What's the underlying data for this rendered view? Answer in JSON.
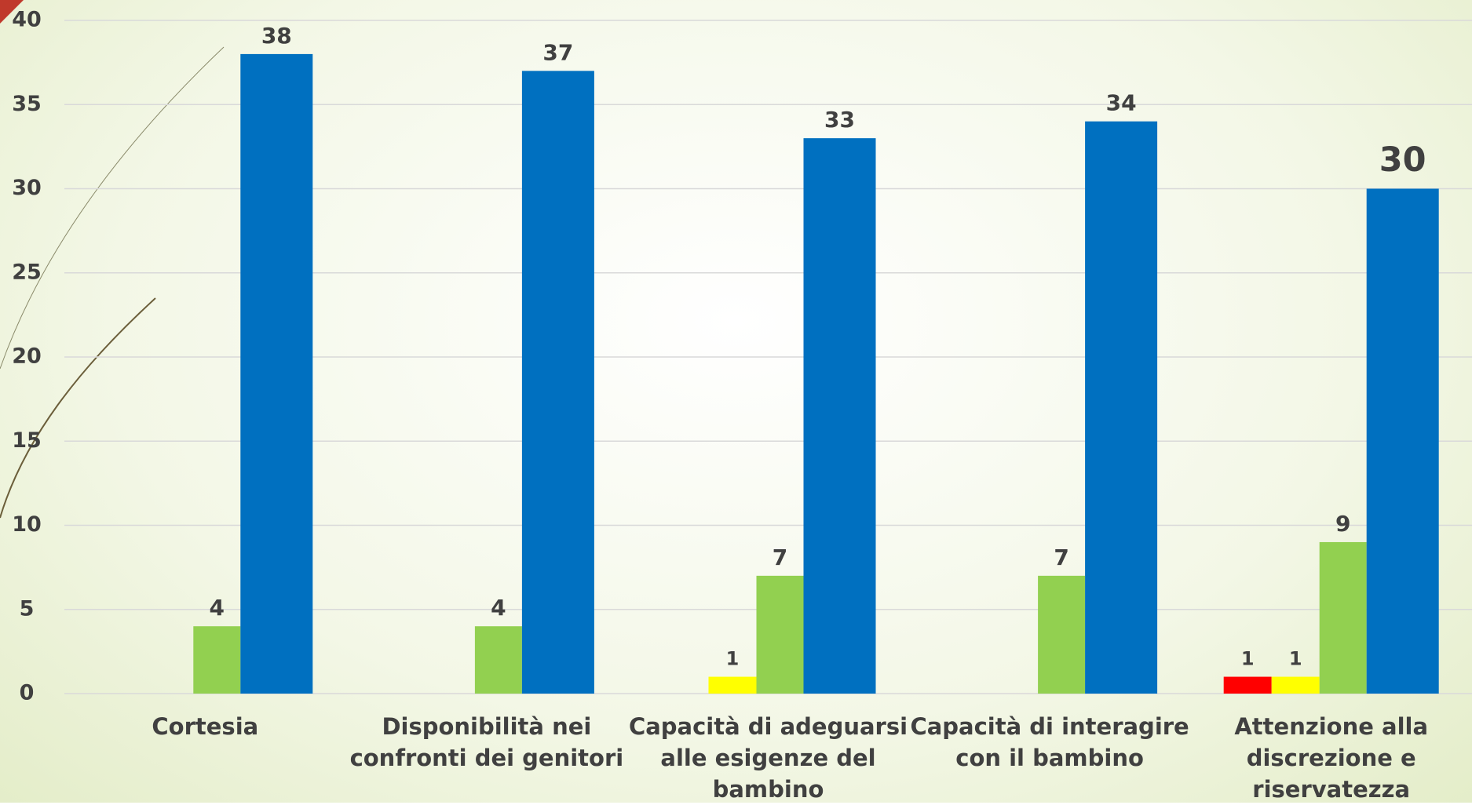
{
  "chart_data": {
    "type": "bar",
    "categories": [
      "Cortesia",
      "Disponibilità nei confronti dei genitori",
      "Capacità di adeguarsi alle esigenze del bambino",
      "Capacità di interagire con il bambino",
      "Attenzione alla discrezione e riservatezza"
    ],
    "series": [
      {
        "color": "#ff0000",
        "values": [
          null,
          null,
          null,
          null,
          1
        ]
      },
      {
        "color": "#ffff00",
        "values": [
          null,
          null,
          1,
          null,
          1
        ]
      },
      {
        "color": "#92d050",
        "values": [
          4,
          4,
          7,
          7,
          9
        ]
      },
      {
        "color": "#0070c0",
        "values": [
          38,
          37,
          33,
          34,
          30
        ]
      }
    ],
    "ylim": [
      0,
      40
    ],
    "yticks": [
      0,
      5,
      10,
      15,
      20,
      25,
      30,
      35,
      40
    ],
    "grid": true
  }
}
